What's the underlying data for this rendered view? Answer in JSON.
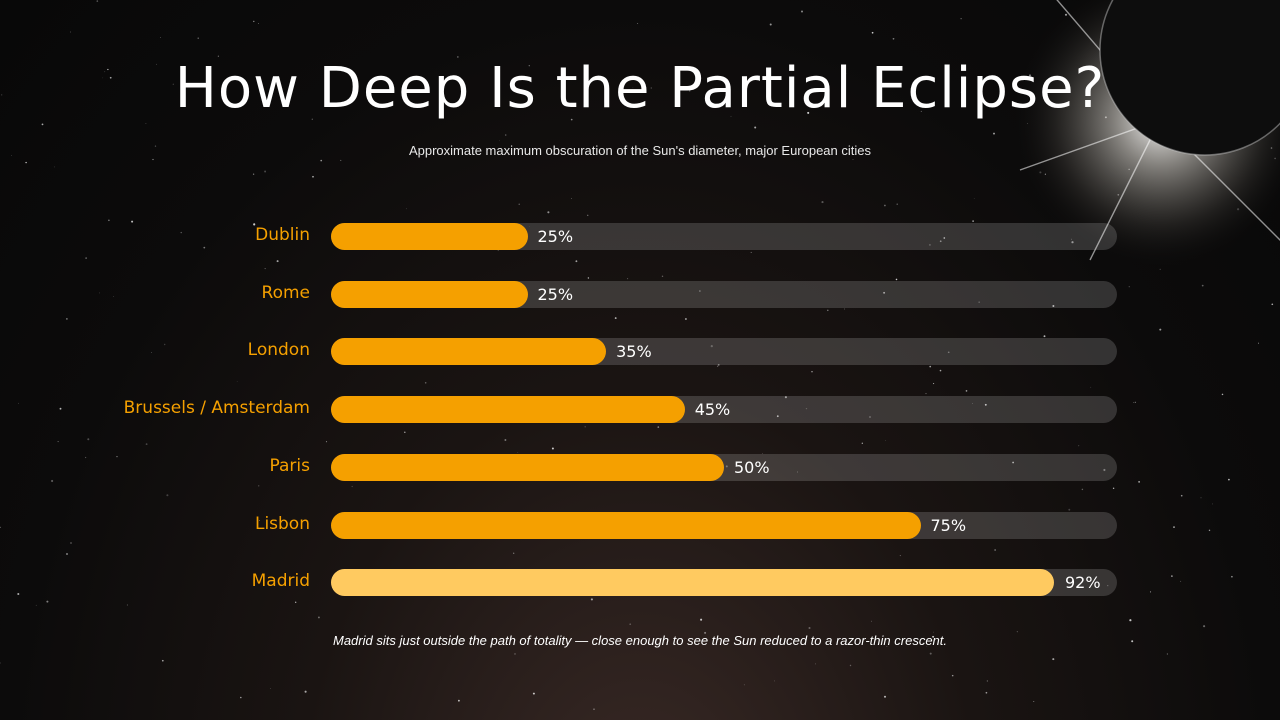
{
  "title": "How Deep Is the Partial Eclipse?",
  "subtitle": "Approximate maximum obscuration of the Sun's diameter, major European cities",
  "footnote": "Madrid sits just outside the path of totality — close enough to see the Sun reduced to a razor-thin crescent.",
  "colors": {
    "bar": "#f5a000",
    "bar_highlight": "#ffca60",
    "track": "#3a3a3a",
    "label": "#f5a000",
    "background": "#0c0b0b"
  },
  "chart_data": {
    "type": "bar",
    "orientation": "horizontal",
    "categories": [
      "Dublin",
      "Rome",
      "London",
      "Brussels / Amsterdam",
      "Paris",
      "Lisbon",
      "Madrid"
    ],
    "values": [
      25,
      25,
      35,
      45,
      50,
      75,
      92
    ],
    "value_labels": [
      "25%",
      "25%",
      "35%",
      "45%",
      "50%",
      "75%",
      "92%"
    ],
    "unit": "%",
    "xlim": [
      0,
      100
    ],
    "highlight_category": "Madrid",
    "grid": false,
    "legend": "none"
  }
}
